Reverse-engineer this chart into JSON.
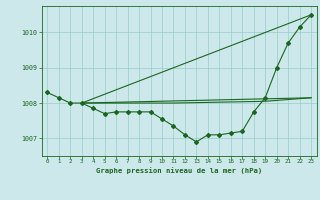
{
  "title": "Graphe pression niveau de la mer (hPa)",
  "bg_color": "#cce8ea",
  "grid_color": "#99cccc",
  "line_color": "#1a6620",
  "xlim": [
    -0.5,
    23.5
  ],
  "ylim": [
    1006.5,
    1010.75
  ],
  "yticks": [
    1007,
    1008,
    1009,
    1010
  ],
  "xticks": [
    0,
    1,
    2,
    3,
    4,
    5,
    6,
    7,
    8,
    9,
    10,
    11,
    12,
    13,
    14,
    15,
    16,
    17,
    18,
    19,
    20,
    21,
    22,
    23
  ],
  "series_main": {
    "x": [
      0,
      1,
      2,
      3,
      4,
      5,
      6,
      7,
      8,
      9,
      10,
      11,
      12,
      13,
      14,
      15,
      16,
      17,
      18,
      19,
      20,
      21,
      22,
      23
    ],
    "y": [
      1008.3,
      1008.15,
      1008.0,
      1008.0,
      1007.85,
      1007.7,
      1007.75,
      1007.75,
      1007.75,
      1007.75,
      1007.55,
      1007.35,
      1007.1,
      1006.9,
      1007.1,
      1007.1,
      1007.15,
      1007.2,
      1007.75,
      1008.15,
      1009.0,
      1009.7,
      1010.15,
      1010.5
    ]
  },
  "series_top": {
    "x": [
      3,
      23
    ],
    "y": [
      1008.0,
      1010.5
    ]
  },
  "series_flat": {
    "x": [
      3,
      23
    ],
    "y": [
      1008.0,
      1008.15
    ]
  },
  "series_mid": {
    "x": [
      3,
      11,
      19,
      23
    ],
    "y": [
      1008.0,
      1008.0,
      1008.05,
      1008.15
    ]
  }
}
